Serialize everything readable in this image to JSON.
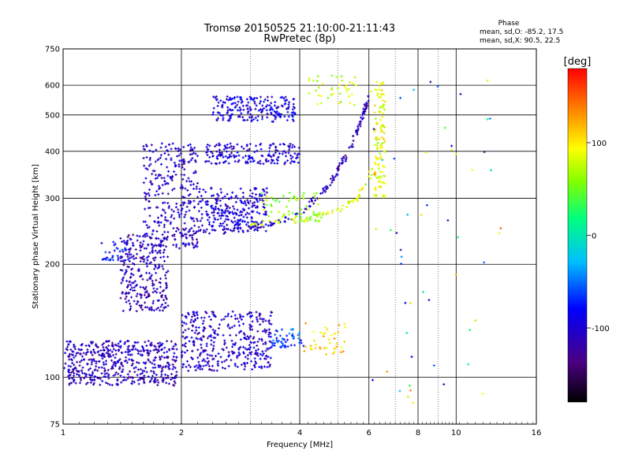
{
  "chart_data": {
    "type": "scatter",
    "title": "Tromsø 20150525 21:10:00-21:11:43",
    "subtitle": "RwPretec (8p)",
    "xlabel": "Frequency [MHz]",
    "ylabel": "Stationary phase Virtual Height [km]",
    "x_scale": "log",
    "y_scale": "log",
    "xlim": [
      1,
      16
    ],
    "ylim": [
      75,
      750
    ],
    "x_ticks": [
      1,
      2,
      4,
      6,
      8,
      10,
      16
    ],
    "x_minor_ticks": [
      3,
      5,
      7,
      9
    ],
    "y_ticks": [
      75,
      100,
      200,
      300,
      400,
      500,
      600,
      750
    ],
    "grid": true,
    "stats": {
      "heading": "Phase",
      "line_o": "mean, sd,O: -85.2, 17.5",
      "line_x": "mean, sd,X:  90.5, 22.5"
    },
    "colorbar": {
      "label": "[deg]",
      "range": [
        -180,
        180
      ],
      "ticks": [
        100,
        0,
        -100
      ],
      "colors": [
        "#000000",
        "#4b0082",
        "#0000ff",
        "#00bfff",
        "#00ff80",
        "#80ff00",
        "#ffff00",
        "#ff8000",
        "#ff0000"
      ]
    },
    "traces": [
      {
        "kind": "band",
        "x": [
          1.0,
          1.95
        ],
        "y": [
          95,
          125
        ],
        "phase": -110,
        "density": 520
      },
      {
        "kind": "band",
        "x": [
          1.4,
          1.85
        ],
        "y": [
          150,
          240
        ],
        "phase": -110,
        "density": 280
      },
      {
        "kind": "band",
        "x": [
          1.6,
          2.2
        ],
        "y": [
          220,
          420
        ],
        "phase": -105,
        "density": 320
      },
      {
        "kind": "band",
        "x": [
          2.0,
          3.4
        ],
        "y": [
          104,
          150
        ],
        "phase": -105,
        "density": 380
      },
      {
        "kind": "band",
        "x": [
          3.4,
          4.1
        ],
        "y": [
          120,
          135
        ],
        "phase": -60,
        "density": 50
      },
      {
        "kind": "band",
        "x": [
          4.1,
          5.3
        ],
        "y": [
          115,
          140
        ],
        "phase": 110,
        "density": 40
      },
      {
        "kind": "band",
        "x": [
          2.2,
          3.3
        ],
        "y": [
          245,
          320
        ],
        "phase": -100,
        "density": 260
      },
      {
        "kind": "band",
        "x": [
          2.4,
          3.9
        ],
        "y": [
          480,
          560
        ],
        "phase": -95,
        "density": 200
      },
      {
        "kind": "band",
        "x": [
          2.3,
          4.0
        ],
        "y": [
          370,
          420
        ],
        "phase": -100,
        "density": 180
      },
      {
        "kind": "band",
        "x": [
          3.2,
          4.5
        ],
        "y": [
          260,
          310
        ],
        "phase": 60,
        "density": 70
      },
      {
        "kind": "band",
        "x": [
          4.2,
          5.6
        ],
        "y": [
          530,
          640
        ],
        "phase": 80,
        "density": 40
      },
      {
        "kind": "band",
        "x": [
          6.2,
          6.6
        ],
        "y": [
          300,
          620
        ],
        "phase": 90,
        "density": 110
      },
      {
        "kind": "band",
        "x": [
          1.25,
          1.45
        ],
        "y": [
          205,
          230
        ],
        "phase": -80,
        "density": 30
      },
      {
        "kind": "curve",
        "x": [
          2.0,
          3.0,
          4.0,
          4.8,
          5.4,
          5.8,
          6.0
        ],
        "y": [
          240,
          248,
          270,
          330,
          410,
          500,
          560
        ],
        "phase": -110,
        "density": 160
      },
      {
        "kind": "curve",
        "x": [
          3.0,
          4.0,
          5.0,
          5.6,
          6.0,
          6.4
        ],
        "y": [
          255,
          262,
          278,
          300,
          340,
          420
        ],
        "phase": 80,
        "density": 70
      },
      {
        "kind": "sparse",
        "x": [
          6.0,
          13.0
        ],
        "y": [
          85,
          660
        ],
        "phase": 30,
        "density": 55
      }
    ]
  }
}
